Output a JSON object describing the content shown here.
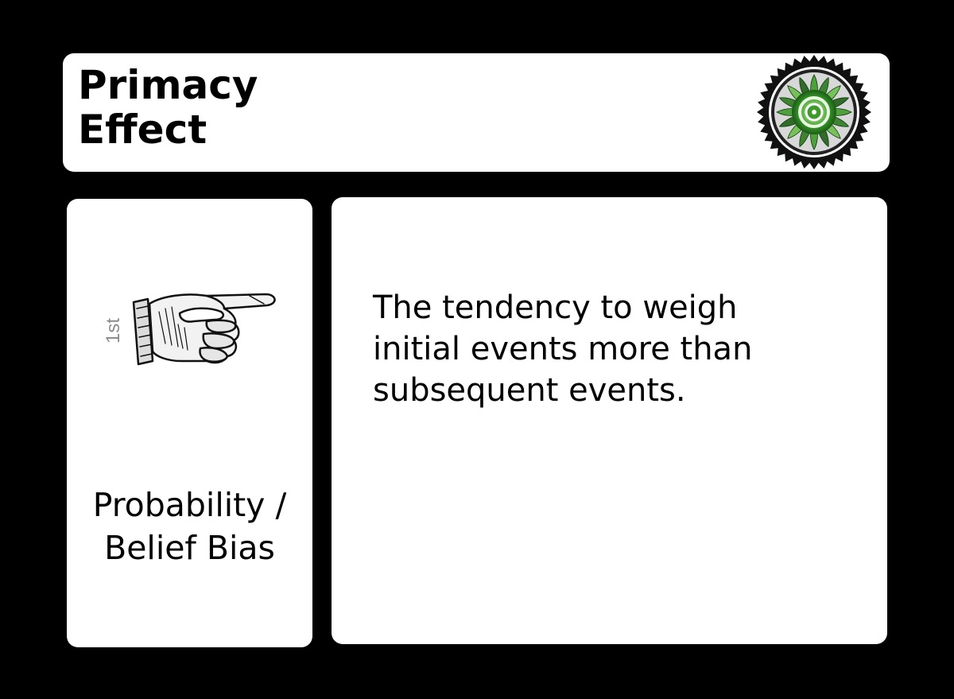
{
  "card": {
    "title_lines": [
      "Primacy",
      "Effect"
    ],
    "category_lines": [
      "Probability /",
      "Belief Bias"
    ],
    "definition_lines": [
      "The tendency to weigh",
      "initial events more than",
      "subsequent events."
    ],
    "hand_label": "1st",
    "emblem_icon": "green-sunburst-seal-icon",
    "hand_icon": "pointing-hand-icon"
  },
  "colors": {
    "background": "#000000",
    "panel": "#ffffff",
    "text": "#000000",
    "hand_label": "#8c8c8c",
    "emblem_green": "#3f9a2c"
  }
}
